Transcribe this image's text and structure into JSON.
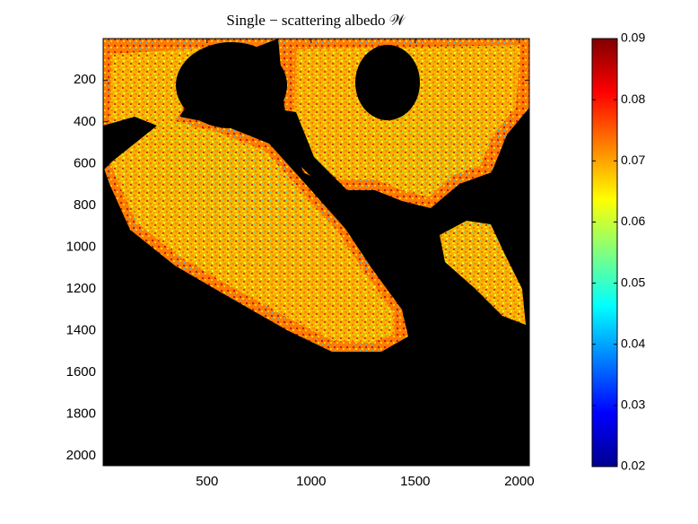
{
  "chart_data": {
    "type": "image",
    "title": "Single − scattering albedo 𝒲",
    "xlim": [
      1,
      2048
    ],
    "xticks": [
      500,
      1000,
      1500,
      2000
    ],
    "ylim": [
      1,
      2048
    ],
    "yticks": [
      200,
      400,
      600,
      800,
      1000,
      1200,
      1400,
      1600,
      1800,
      2000
    ],
    "colormap": "jet",
    "clim": [
      0.02,
      0.09
    ],
    "cticks": [
      0.02,
      0.03,
      0.04,
      0.05,
      0.06,
      0.07,
      0.08,
      0.09
    ]
  }
}
